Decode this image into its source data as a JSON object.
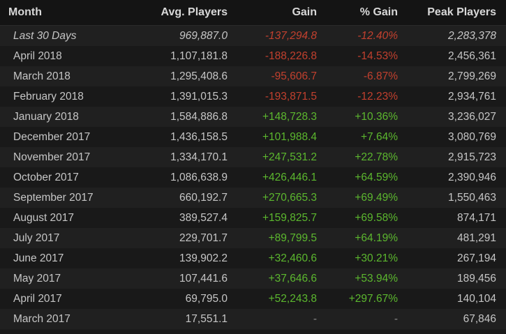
{
  "headers": {
    "month": "Month",
    "avg": "Avg. Players",
    "gain": "Gain",
    "pct": "% Gain",
    "peak": "Peak Players"
  },
  "colors": {
    "negative": "#c2402e",
    "positive": "#5cb82e",
    "header_bg": "#141414"
  },
  "rows": [
    {
      "month": "Last 30 Days",
      "avg": "969,887.0",
      "gain": "-137,294.8",
      "pct": "-12.40%",
      "peak": "2,283,378",
      "trend": "neg"
    },
    {
      "month": "April 2018",
      "avg": "1,107,181.8",
      "gain": "-188,226.8",
      "pct": "-14.53%",
      "peak": "2,456,361",
      "trend": "neg"
    },
    {
      "month": "March 2018",
      "avg": "1,295,408.6",
      "gain": "-95,606.7",
      "pct": "-6.87%",
      "peak": "2,799,269",
      "trend": "neg"
    },
    {
      "month": "February 2018",
      "avg": "1,391,015.3",
      "gain": "-193,871.5",
      "pct": "-12.23%",
      "peak": "2,934,761",
      "trend": "neg"
    },
    {
      "month": "January 2018",
      "avg": "1,584,886.8",
      "gain": "+148,728.3",
      "pct": "+10.36%",
      "peak": "3,236,027",
      "trend": "pos"
    },
    {
      "month": "December 2017",
      "avg": "1,436,158.5",
      "gain": "+101,988.4",
      "pct": "+7.64%",
      "peak": "3,080,769",
      "trend": "pos"
    },
    {
      "month": "November 2017",
      "avg": "1,334,170.1",
      "gain": "+247,531.2",
      "pct": "+22.78%",
      "peak": "2,915,723",
      "trend": "pos"
    },
    {
      "month": "October 2017",
      "avg": "1,086,638.9",
      "gain": "+426,446.1",
      "pct": "+64.59%",
      "peak": "2,390,946",
      "trend": "pos"
    },
    {
      "month": "September 2017",
      "avg": "660,192.7",
      "gain": "+270,665.3",
      "pct": "+69.49%",
      "peak": "1,550,463",
      "trend": "pos"
    },
    {
      "month": "August 2017",
      "avg": "389,527.4",
      "gain": "+159,825.7",
      "pct": "+69.58%",
      "peak": "874,171",
      "trend": "pos"
    },
    {
      "month": "July 2017",
      "avg": "229,701.7",
      "gain": "+89,799.5",
      "pct": "+64.19%",
      "peak": "481,291",
      "trend": "pos"
    },
    {
      "month": "June 2017",
      "avg": "139,902.2",
      "gain": "+32,460.6",
      "pct": "+30.21%",
      "peak": "267,194",
      "trend": "pos"
    },
    {
      "month": "May 2017",
      "avg": "107,441.6",
      "gain": "+37,646.6",
      "pct": "+53.94%",
      "peak": "189,456",
      "trend": "pos"
    },
    {
      "month": "April 2017",
      "avg": "69,795.0",
      "gain": "+52,243.8",
      "pct": "+297.67%",
      "peak": "140,104",
      "trend": "pos"
    },
    {
      "month": "March 2017",
      "avg": "17,551.1",
      "gain": "-",
      "pct": "-",
      "peak": "67,846",
      "trend": "na"
    }
  ]
}
